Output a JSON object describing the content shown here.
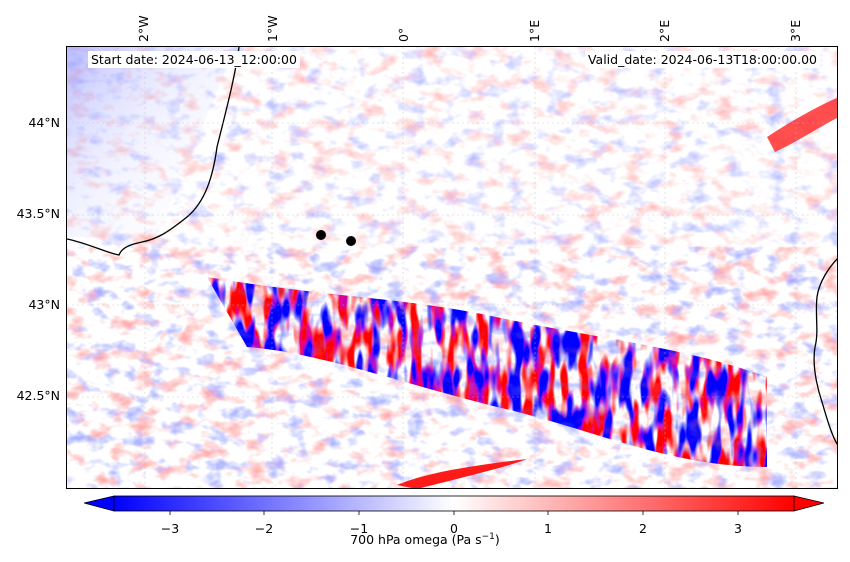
{
  "map": {
    "start_label": "Start date: 2024-06-13_12:00:00",
    "valid_label": "Valid_date: 2024-06-13T18:00:00.00",
    "lat_ticks": [
      "44°N",
      "43.5°N",
      "43°N",
      "42.5°N"
    ],
    "lon_ticks": [
      "2°W",
      "1°W",
      "0°",
      "1°E",
      "2°E",
      "3°E"
    ],
    "colormap": "bwr",
    "colors": {
      "negative": "#0000ff",
      "neutral": "#ffffff",
      "positive": "#ff0000",
      "coastline": "#000000"
    },
    "points_count_shown": 2
  },
  "colorbar": {
    "ticks": [
      "−3",
      "−2",
      "−1",
      "0",
      "1",
      "2",
      "3"
    ],
    "range": [
      -3.6,
      3.6
    ],
    "extend": "both",
    "label_main": "700 hPa omega (Pa s",
    "label_sup": "−1",
    "label_close": ")"
  }
}
